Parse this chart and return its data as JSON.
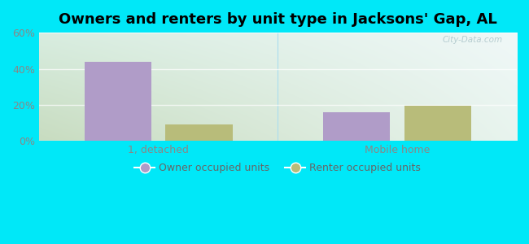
{
  "title": "Owners and renters by unit type in Jacksons' Gap, AL",
  "categories": [
    "1, detached",
    "Mobile home"
  ],
  "owner_values": [
    44.0,
    16.0
  ],
  "renter_values": [
    9.0,
    19.5
  ],
  "owner_color": "#b09cc8",
  "renter_color": "#b8bc7a",
  "owner_label": "Owner occupied units",
  "renter_label": "Renter occupied units",
  "ylim": [
    0,
    60
  ],
  "yticks": [
    0,
    20,
    40,
    60
  ],
  "ytick_labels": [
    "0%",
    "20%",
    "40%",
    "60%"
  ],
  "bar_width": 0.28,
  "background_color_topleft": "#d8ede0",
  "background_color_topright": "#f0f8f8",
  "background_color_bottomleft": "#c8dcc0",
  "background_color_bottomright": "#e8f4ee",
  "outer_background": "#00e8f8",
  "watermark": "City-Data.com",
  "title_fontsize": 13,
  "grid_color": "#e0ece8",
  "tick_color": "#888888",
  "separator_color": "#aaddee"
}
